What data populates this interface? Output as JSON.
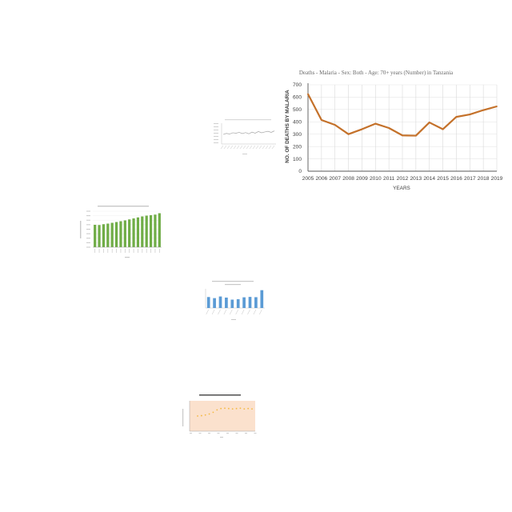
{
  "colors": {
    "main_line": "#c4712a",
    "green_bar": "#70ad47",
    "blue_bar": "#5b9bd5",
    "orange_dot": "#f4b942",
    "peach_bg": "#fbe1cd",
    "gray_line": "#a6a6a6"
  },
  "chart_data": [
    {
      "type": "line",
      "title": "Deaths - Malaria - Sex: Both - Age: 70+ years (Number) in Tanzania",
      "xlabel": "YEARS",
      "ylabel": "NO. OF DEATHS BY MALARIA",
      "x": [
        2005,
        2006,
        2007,
        2008,
        2009,
        2010,
        2011,
        2012,
        2013,
        2014,
        2015,
        2016,
        2017,
        2018,
        2019
      ],
      "y_ticks": [
        0,
        100,
        200,
        300,
        400,
        500,
        600,
        700
      ],
      "ylim": [
        0,
        700
      ],
      "grid": true,
      "series": [
        {
          "values": [
            625,
            415,
            375,
            300,
            340,
            385,
            350,
            290,
            288,
            395,
            340,
            440,
            460,
            495,
            525
          ]
        }
      ]
    },
    {
      "type": "line",
      "ylim": [
        0,
        10
      ],
      "grid": false,
      "series": [
        {
          "values": [
            4.6,
            5.1,
            4.8,
            5.4,
            5.2,
            5.6,
            5.0,
            5.5,
            4.9,
            5.7,
            5.2,
            6.0,
            5.4,
            5.8,
            6.1,
            5.6,
            6.3
          ]
        }
      ]
    },
    {
      "type": "bar",
      "ylim": [
        0,
        1800
      ],
      "series": [
        {
          "values": [
            1120,
            1110,
            1150,
            1180,
            1220,
            1260,
            1300,
            1340,
            1390,
            1440,
            1490,
            1540,
            1580,
            1600,
            1630,
            1700
          ]
        }
      ]
    },
    {
      "type": "bar",
      "ylim": [
        0,
        14
      ],
      "series": [
        {
          "values": [
            8,
            7.2,
            8.4,
            7.6,
            6.1,
            6.4,
            7.8,
            8.1,
            7.9,
            13
          ]
        }
      ]
    },
    {
      "type": "scatter",
      "ylim": [
        0,
        90
      ],
      "series": [
        {
          "values": [
            45,
            46,
            48,
            51,
            56,
            63,
            67,
            68,
            67,
            66,
            67,
            68,
            66,
            67,
            66
          ]
        }
      ]
    }
  ]
}
